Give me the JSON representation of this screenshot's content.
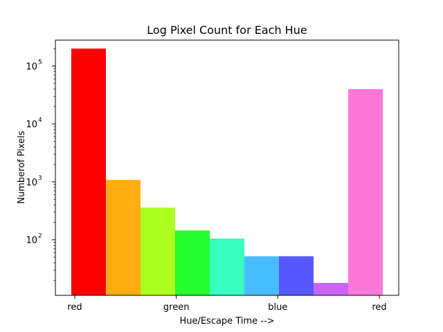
{
  "chart_data": {
    "type": "bar",
    "title": "Log Pixel Count for Each Hue",
    "xlabel": "Hue/Escape Time -->",
    "ylabel": "Numberof Pixels",
    "yscale": "log",
    "ylim": [
      11,
      280000
    ],
    "x_tick_labels": [
      "red",
      "green",
      "blue",
      "red"
    ],
    "y_tick_labels": [
      {
        "value": 100,
        "base": "10",
        "exp": "2"
      },
      {
        "value": 1000,
        "base": "10",
        "exp": "3"
      },
      {
        "value": 10000,
        "base": "10",
        "exp": "4"
      },
      {
        "value": 100000,
        "base": "10",
        "exp": "5"
      }
    ],
    "bars": [
      {
        "value": 200000,
        "color": "#ff0000"
      },
      {
        "value": 1080,
        "color": "#ffad14"
      },
      {
        "value": 360,
        "color": "#adff21"
      },
      {
        "value": 145,
        "color": "#29ff2e"
      },
      {
        "value": 105,
        "color": "#38ffbd"
      },
      {
        "value": 52,
        "color": "#47bdff"
      },
      {
        "value": 52,
        "color": "#5757ff"
      },
      {
        "value": 18,
        "color": "#c963ff"
      },
      {
        "value": 40000,
        "color": "#ff78d9"
      }
    ],
    "grid": false,
    "legend": "none"
  }
}
